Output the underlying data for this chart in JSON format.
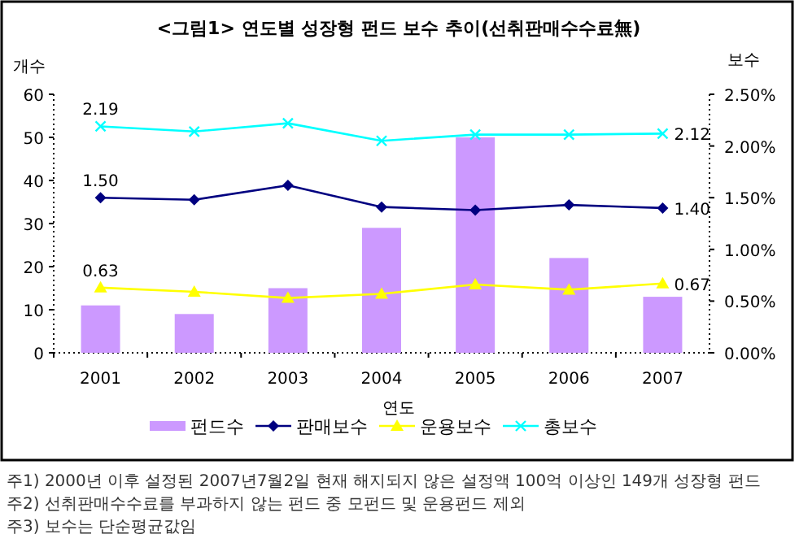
{
  "chart_data": {
    "type": "bar",
    "title": "<그림1> 연도별 성장형 펀드 보수 추이(선취판매수수료無)",
    "xlabel": "연도",
    "ylabel": "개수",
    "y2label": "보수",
    "categories": [
      "2001",
      "2002",
      "2003",
      "2004",
      "2005",
      "2006",
      "2007"
    ],
    "series": [
      {
        "name": "펀드수",
        "color": "#cc99ff",
        "values": [
          11,
          9,
          15,
          29,
          50,
          22,
          13
        ]
      },
      {
        "name": "판매보수",
        "type": "line",
        "axis": "y2",
        "marker": "diamond",
        "color": "#000080",
        "values": [
          1.5,
          1.48,
          1.62,
          1.41,
          1.38,
          1.43,
          1.4
        ],
        "value_labels": [
          "1.50",
          null,
          null,
          null,
          null,
          null,
          "1.40"
        ]
      },
      {
        "name": "운용보수",
        "type": "line",
        "axis": "y2",
        "marker": "triangle",
        "color": "#ffff00",
        "values": [
          0.63,
          0.59,
          0.53,
          0.57,
          0.66,
          0.61,
          0.67
        ],
        "value_labels": [
          "0.63",
          null,
          null,
          null,
          null,
          null,
          "0.67"
        ]
      },
      {
        "name": "총보수",
        "type": "line",
        "axis": "y2",
        "marker": "cross",
        "color": "#00ffff",
        "values": [
          2.19,
          2.14,
          2.22,
          2.05,
          2.11,
          2.11,
          2.12
        ],
        "value_labels": [
          "2.19",
          null,
          null,
          null,
          null,
          null,
          "2.12"
        ]
      }
    ],
    "ylim": [
      0,
      60
    ],
    "yticks": [
      0,
      10,
      20,
      30,
      40,
      50,
      60
    ],
    "y2lim": [
      0,
      2.5
    ],
    "y2ticks": [
      {
        "value": 0,
        "label": "0.00%"
      },
      {
        "value": 0.5,
        "label": "0.50%"
      },
      {
        "value": 1,
        "label": "1.00%"
      },
      {
        "value": 1.5,
        "label": "1.50%"
      },
      {
        "value": 2,
        "label": "2.00%"
      },
      {
        "value": 2.5,
        "label": "2.50%"
      }
    ],
    "grid": false,
    "legend": "bottom",
    "annotations": [
      "주1) 2000년 이후 설정된 2007년7월2일 현재 해지되지 않은 설정액 100억 이상인 149개 성장형 펀드",
      "주2) 선취판매수수료를 부과하지 않는 펀드 중 모펀드 및 운용펀드 제외",
      "주3) 보수는 단순평균값임"
    ]
  }
}
